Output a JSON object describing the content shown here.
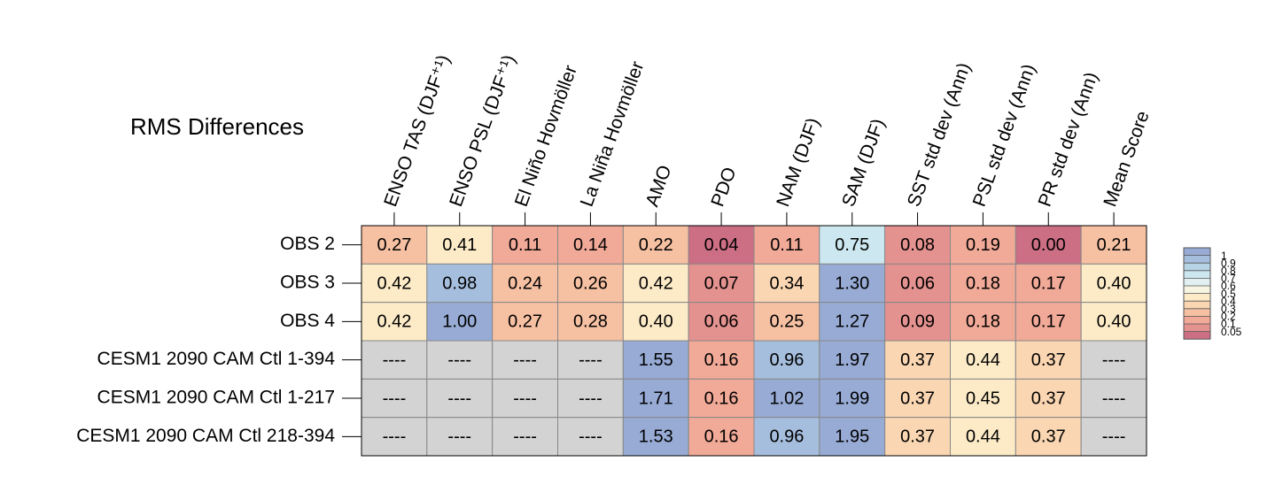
{
  "chart_data": {
    "type": "heatmap",
    "title": "RMS Differences",
    "columns": [
      "ENSO TAS (DJF⁺¹)",
      "ENSO PSL (DJF⁺¹)",
      "El Niño Hovmöller",
      "La Niña Hovmöller",
      "AMO",
      "PDO",
      "NAM (DJF)",
      "SAM (DJF)",
      "SST std dev (Ann)",
      "PSL std dev (Ann)",
      "PR std dev (Ann)",
      "Mean Score"
    ],
    "rows": [
      "OBS 2",
      "OBS 3",
      "OBS 4",
      "CESM1 2090 CAM Ctl 1-394",
      "CESM1 2090 CAM Ctl 1-217",
      "CESM1 2090 CAM Ctl 218-394"
    ],
    "values": [
      [
        0.27,
        0.41,
        0.11,
        0.14,
        0.22,
        0.04,
        0.11,
        0.75,
        0.08,
        0.19,
        0.0,
        0.21
      ],
      [
        0.42,
        0.98,
        0.24,
        0.26,
        0.42,
        0.07,
        0.34,
        1.3,
        0.06,
        0.18,
        0.17,
        0.4
      ],
      [
        0.42,
        1.0,
        0.27,
        0.28,
        0.4,
        0.06,
        0.25,
        1.27,
        0.09,
        0.18,
        0.17,
        0.4
      ],
      [
        null,
        null,
        null,
        null,
        1.55,
        0.16,
        0.96,
        1.97,
        0.37,
        0.44,
        0.37,
        null
      ],
      [
        null,
        null,
        null,
        null,
        1.71,
        0.16,
        1.02,
        1.99,
        0.37,
        0.45,
        0.37,
        null
      ],
      [
        null,
        null,
        null,
        null,
        1.53,
        0.16,
        0.96,
        1.95,
        0.37,
        0.44,
        0.37,
        null
      ]
    ],
    "value_labels": [
      [
        "0.27",
        "0.41",
        "0.11",
        "0.14",
        "0.22",
        "0.04",
        "0.11",
        "0.75",
        "0.08",
        "0.19",
        "0.00",
        "0.21"
      ],
      [
        "0.42",
        "0.98",
        "0.24",
        "0.26",
        "0.42",
        "0.07",
        "0.34",
        "1.30",
        "0.06",
        "0.18",
        "0.17",
        "0.40"
      ],
      [
        "0.42",
        "1.00",
        "0.27",
        "0.28",
        "0.40",
        "0.06",
        "0.25",
        "1.27",
        "0.09",
        "0.18",
        "0.17",
        "0.40"
      ],
      [
        "----",
        "----",
        "----",
        "----",
        "1.55",
        "0.16",
        "0.96",
        "1.97",
        "0.37",
        "0.44",
        "0.37",
        "----"
      ],
      [
        "----",
        "----",
        "----",
        "----",
        "1.71",
        "0.16",
        "1.02",
        "1.99",
        "0.37",
        "0.45",
        "0.37",
        "----"
      ],
      [
        "----",
        "----",
        "----",
        "----",
        "1.53",
        "0.16",
        "0.96",
        "1.95",
        "0.37",
        "0.44",
        "0.37",
        "----"
      ]
    ],
    "missing_color": "#d3d3d3",
    "colorbar": {
      "levels": [
        0.05,
        0.1,
        0.2,
        0.3,
        0.4,
        0.5,
        0.6,
        0.7,
        0.8,
        0.9,
        1
      ],
      "colors": [
        "#cc6e84",
        "#e4928f",
        "#f1a998",
        "#f6c0a2",
        "#fad6b2",
        "#fdebc8",
        "#f7f5e2",
        "#e2f0f2",
        "#cce7ef",
        "#b6d4e6",
        "#a6bedd",
        "#97abd5"
      ]
    }
  }
}
